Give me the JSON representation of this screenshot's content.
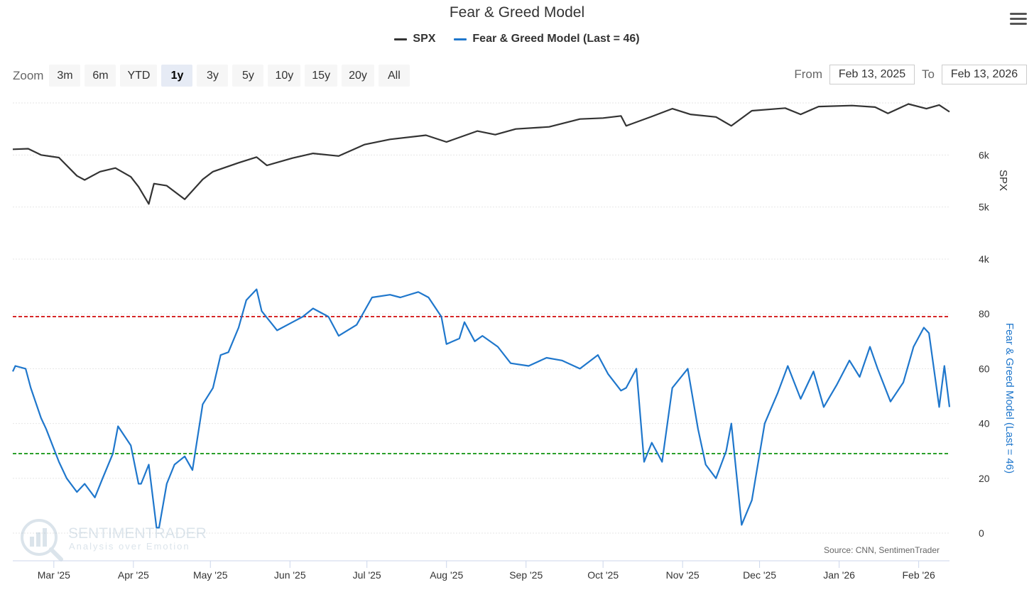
{
  "title": "Fear & Greed Model",
  "legend": [
    {
      "label": "SPX",
      "color": "#333333"
    },
    {
      "label": "Fear & Greed Model (Last = 46)",
      "color": "#1f77cc"
    }
  ],
  "zoom": {
    "label": "Zoom",
    "buttons": [
      "3m",
      "6m",
      "YTD",
      "1y",
      "3y",
      "5y",
      "10y",
      "15y",
      "20y",
      "All"
    ],
    "active": "1y"
  },
  "range": {
    "from_label": "From",
    "from_value": "Feb 13, 2025",
    "to_label": "To",
    "to_value": "Feb 13, 2026"
  },
  "watermark": {
    "name": "SENTIMENTRADER",
    "tagline": "Analysis over Emotion"
  },
  "source": "Source: CNN, SentimenTrader",
  "chart_data": [
    {
      "type": "line",
      "name": "SPX",
      "color": "#333333",
      "ylabel": "SPX",
      "ytick_labels": [
        "4k",
        "5k",
        "6k"
      ],
      "ytick_values": [
        4000,
        5000,
        6000
      ],
      "ylim": [
        4000,
        7000
      ],
      "x": [
        "2025-02-13",
        "2025-02-19",
        "2025-02-24",
        "2025-03-03",
        "2025-03-10",
        "2025-03-13",
        "2025-03-19",
        "2025-03-25",
        "2025-03-31",
        "2025-04-03",
        "2025-04-07",
        "2025-04-09",
        "2025-04-14",
        "2025-04-21",
        "2025-04-28",
        "2025-05-02",
        "2025-05-12",
        "2025-05-19",
        "2025-05-23",
        "2025-06-02",
        "2025-06-10",
        "2025-06-20",
        "2025-06-30",
        "2025-07-10",
        "2025-07-24",
        "2025-08-01",
        "2025-08-13",
        "2025-08-20",
        "2025-08-28",
        "2025-09-10",
        "2025-09-22",
        "2025-10-01",
        "2025-10-08",
        "2025-10-10",
        "2025-10-20",
        "2025-10-28",
        "2025-11-04",
        "2025-11-14",
        "2025-11-20",
        "2025-11-28",
        "2025-12-11",
        "2025-12-17",
        "2025-12-24",
        "2026-01-06",
        "2026-01-15",
        "2026-01-20",
        "2026-01-28",
        "2026-02-04",
        "2026-02-09",
        "2026-02-13"
      ],
      "values": [
        6110,
        6120,
        6000,
        5950,
        5600,
        5520,
        5680,
        5750,
        5580,
        5390,
        5060,
        5450,
        5410,
        5150,
        5530,
        5680,
        5850,
        5960,
        5800,
        5940,
        6030,
        5980,
        6200,
        6300,
        6380,
        6250,
        6460,
        6390,
        6500,
        6540,
        6690,
        6710,
        6750,
        6560,
        6740,
        6890,
        6780,
        6730,
        6560,
        6850,
        6900,
        6780,
        6930,
        6950,
        6920,
        6800,
        6980,
        6890,
        6960,
        6830
      ]
    },
    {
      "type": "line",
      "name": "Fear & Greed Model (Last = 46)",
      "color": "#1f77cc",
      "ylabel": "Fear & Greed Model (Last = 46)",
      "ytick_labels": [
        "0",
        "20",
        "40",
        "60",
        "80"
      ],
      "ytick_values": [
        0,
        20,
        40,
        60,
        80
      ],
      "ylim": [
        -5,
        100
      ],
      "reference_lines": [
        {
          "value": 79,
          "color": "#d62728"
        },
        {
          "value": 29,
          "color": "#2ca02c"
        }
      ],
      "x": [
        "2025-02-13",
        "2025-02-14",
        "2025-02-18",
        "2025-02-20",
        "2025-02-24",
        "2025-02-26",
        "2025-03-03",
        "2025-03-06",
        "2025-03-10",
        "2025-03-13",
        "2025-03-17",
        "2025-03-20",
        "2025-03-24",
        "2025-03-26",
        "2025-03-31",
        "2025-04-03",
        "2025-04-04",
        "2025-04-07",
        "2025-04-10",
        "2025-04-11",
        "2025-04-14",
        "2025-04-17",
        "2025-04-21",
        "2025-04-24",
        "2025-04-28",
        "2025-05-02",
        "2025-05-05",
        "2025-05-08",
        "2025-05-12",
        "2025-05-15",
        "2025-05-19",
        "2025-05-21",
        "2025-05-27",
        "2025-06-02",
        "2025-06-06",
        "2025-06-10",
        "2025-06-16",
        "2025-06-20",
        "2025-06-27",
        "2025-07-03",
        "2025-07-10",
        "2025-07-14",
        "2025-07-21",
        "2025-07-25",
        "2025-07-30",
        "2025-08-01",
        "2025-08-06",
        "2025-08-08",
        "2025-08-12",
        "2025-08-15",
        "2025-08-21",
        "2025-08-26",
        "2025-09-02",
        "2025-09-09",
        "2025-09-15",
        "2025-09-22",
        "2025-09-29",
        "2025-10-03",
        "2025-10-08",
        "2025-10-10",
        "2025-10-14",
        "2025-10-17",
        "2025-10-20",
        "2025-10-24",
        "2025-10-28",
        "2025-11-03",
        "2025-11-07",
        "2025-11-10",
        "2025-11-14",
        "2025-11-18",
        "2025-11-20",
        "2025-11-24",
        "2025-11-28",
        "2025-12-03",
        "2025-12-08",
        "2025-12-12",
        "2025-12-17",
        "2025-12-22",
        "2025-12-26",
        "2025-12-31",
        "2026-01-05",
        "2026-01-09",
        "2026-01-13",
        "2026-01-16",
        "2026-01-21",
        "2026-01-26",
        "2026-01-30",
        "2026-02-03",
        "2026-02-05",
        "2026-02-09",
        "2026-02-11",
        "2026-02-13"
      ],
      "values": [
        59,
        61,
        60,
        53,
        42,
        38,
        26,
        20,
        15,
        18,
        13,
        20,
        29,
        39,
        32,
        18,
        18,
        25,
        2,
        2,
        18,
        25,
        28,
        23,
        47,
        53,
        65,
        66,
        75,
        85,
        89,
        81,
        74,
        77,
        79,
        82,
        79,
        72,
        76,
        86,
        87,
        86,
        88,
        86,
        79,
        69,
        71,
        77,
        70,
        72,
        68,
        62,
        61,
        64,
        63,
        60,
        65,
        58,
        52,
        53,
        60,
        26,
        33,
        26,
        53,
        60,
        38,
        25,
        20,
        30,
        40,
        3,
        12,
        40,
        51,
        61,
        49,
        59,
        46,
        54,
        63,
        57,
        68,
        60,
        48,
        55,
        68,
        75,
        73,
        46,
        61,
        46
      ]
    }
  ],
  "x_axis": {
    "tick_labels": [
      "Mar '25",
      "Apr '25",
      "May '25",
      "Jun '25",
      "Jul '25",
      "Aug '25",
      "Sep '25",
      "Oct '25",
      "Nov '25",
      "Dec '25",
      "Jan '26",
      "Feb '26"
    ],
    "tick_dates": [
      "2025-03-01",
      "2025-04-01",
      "2025-05-01",
      "2025-06-01",
      "2025-07-01",
      "2025-08-01",
      "2025-09-01",
      "2025-10-01",
      "2025-11-01",
      "2025-12-01",
      "2026-01-01",
      "2026-02-01"
    ],
    "range": [
      "2025-02-13",
      "2026-02-13"
    ]
  }
}
